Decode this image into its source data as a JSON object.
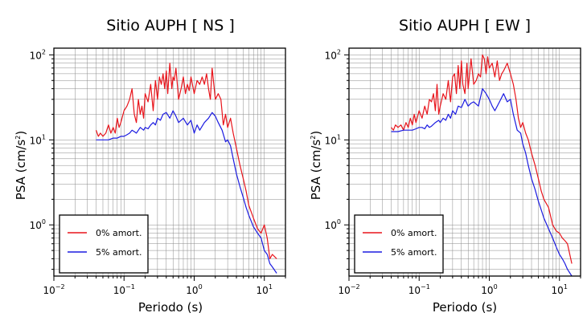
{
  "chart_data": [
    {
      "type": "line",
      "title": "Sitio AUPH [ NS ]",
      "xlabel": "Periodo (s)",
      "ylabel_main": "PSA (cm/s",
      "ylabel_sup": "2",
      "ylabel_close": ")",
      "xscale": "log",
      "yscale": "log",
      "xlim": [
        0.01,
        20
      ],
      "ylim": [
        0.25,
        120
      ],
      "grid": true,
      "legend_position": "bottom-left",
      "x_ticks": [
        {
          "base": "10",
          "exp": "−2"
        },
        {
          "base": "10",
          "exp": "−1"
        },
        {
          "base": "10",
          "exp": "0"
        },
        {
          "base": "10",
          "exp": "1"
        }
      ],
      "y_ticks": [
        {
          "base": "10",
          "exp": "0"
        },
        {
          "base": "10",
          "exp": "1"
        },
        {
          "base": "10",
          "exp": "2"
        }
      ],
      "series": [
        {
          "name": "0% amort.",
          "color": "#e8141b",
          "x": [
            0.04,
            0.043,
            0.046,
            0.05,
            0.055,
            0.06,
            0.065,
            0.07,
            0.075,
            0.08,
            0.085,
            0.09,
            0.1,
            0.11,
            0.12,
            0.13,
            0.14,
            0.15,
            0.16,
            0.17,
            0.18,
            0.19,
            0.2,
            0.22,
            0.24,
            0.26,
            0.28,
            0.3,
            0.32,
            0.34,
            0.36,
            0.38,
            0.4,
            0.42,
            0.45,
            0.48,
            0.5,
            0.52,
            0.55,
            0.6,
            0.65,
            0.7,
            0.75,
            0.8,
            0.85,
            0.9,
            1.0,
            1.1,
            1.2,
            1.3,
            1.4,
            1.5,
            1.6,
            1.7,
            1.8,
            2.0,
            2.2,
            2.4,
            2.6,
            2.8,
            3.0,
            3.3,
            3.6,
            4.0,
            4.5,
            5.0,
            5.5,
            6.0,
            7.0,
            8.0,
            9.0,
            10.0,
            11.0,
            12.0,
            13.0,
            15.0
          ],
          "y": [
            13,
            11,
            12,
            11,
            12,
            15,
            12,
            14,
            12,
            18,
            14,
            16,
            22,
            25,
            30,
            40,
            20,
            16,
            30,
            20,
            25,
            18,
            35,
            28,
            45,
            22,
            50,
            30,
            55,
            45,
            60,
            40,
            65,
            35,
            80,
            40,
            55,
            50,
            70,
            30,
            40,
            55,
            35,
            45,
            38,
            55,
            35,
            50,
            45,
            55,
            45,
            60,
            40,
            30,
            70,
            30,
            35,
            30,
            15,
            20,
            14,
            18,
            12,
            8,
            5,
            3.5,
            2.5,
            1.7,
            1.2,
            0.9,
            0.8,
            1.0,
            0.7,
            0.4,
            0.45,
            0.4
          ]
        },
        {
          "name": "5% amort.",
          "color": "#1b1be0",
          "x": [
            0.04,
            0.05,
            0.06,
            0.07,
            0.08,
            0.09,
            0.1,
            0.11,
            0.12,
            0.13,
            0.14,
            0.15,
            0.17,
            0.19,
            0.2,
            0.22,
            0.24,
            0.26,
            0.28,
            0.3,
            0.33,
            0.36,
            0.4,
            0.45,
            0.5,
            0.55,
            0.6,
            0.7,
            0.8,
            0.9,
            1.0,
            1.1,
            1.2,
            1.4,
            1.6,
            1.8,
            2.0,
            2.2,
            2.5,
            2.8,
            3.0,
            3.3,
            3.6,
            4.0,
            4.5,
            5.0,
            5.5,
            6.0,
            7.0,
            8.0,
            9.0,
            10.0,
            11.0,
            12.0,
            13.0,
            15.0
          ],
          "y": [
            10,
            10,
            10,
            10.5,
            10.5,
            11,
            11,
            11.5,
            12,
            13,
            12.5,
            12,
            14,
            13,
            14,
            13.5,
            15,
            16,
            15,
            18,
            17,
            20,
            21,
            18,
            22,
            19,
            16,
            18,
            15,
            17,
            12,
            15,
            13,
            16,
            18,
            21,
            19,
            16,
            13,
            9.5,
            10,
            8.5,
            6,
            4,
            2.8,
            2.1,
            1.6,
            1.3,
            0.95,
            0.8,
            0.7,
            0.5,
            0.45,
            0.35,
            0.32,
            0.27
          ]
        }
      ]
    },
    {
      "type": "line",
      "title": "Sitio AUPH [ EW ]",
      "xlabel": "Periodo (s)",
      "ylabel_main": "PSA (cm/s",
      "ylabel_sup": "2",
      "ylabel_close": ")",
      "xscale": "log",
      "yscale": "log",
      "xlim": [
        0.01,
        20
      ],
      "ylim": [
        0.25,
        120
      ],
      "grid": true,
      "legend_position": "bottom-left",
      "x_ticks": [
        {
          "base": "10",
          "exp": "−2"
        },
        {
          "base": "10",
          "exp": "−1"
        },
        {
          "base": "10",
          "exp": "0"
        },
        {
          "base": "10",
          "exp": "1"
        }
      ],
      "y_ticks": [
        {
          "base": "10",
          "exp": "0"
        },
        {
          "base": "10",
          "exp": "1"
        },
        {
          "base": "10",
          "exp": "2"
        }
      ],
      "series": [
        {
          "name": "0% amort.",
          "color": "#e8141b",
          "x": [
            0.04,
            0.043,
            0.046,
            0.05,
            0.055,
            0.06,
            0.065,
            0.07,
            0.075,
            0.08,
            0.085,
            0.09,
            0.1,
            0.11,
            0.12,
            0.13,
            0.14,
            0.15,
            0.16,
            0.17,
            0.18,
            0.19,
            0.2,
            0.22,
            0.24,
            0.26,
            0.28,
            0.3,
            0.32,
            0.34,
            0.36,
            0.38,
            0.4,
            0.42,
            0.45,
            0.48,
            0.5,
            0.55,
            0.6,
            0.65,
            0.7,
            0.75,
            0.8,
            0.85,
            0.9,
            0.95,
            1.0,
            1.1,
            1.2,
            1.3,
            1.4,
            1.5,
            1.6,
            1.8,
            2.0,
            2.2,
            2.4,
            2.6,
            2.8,
            3.0,
            3.3,
            3.6,
            4.0,
            4.5,
            5.0,
            5.5,
            6.0,
            7.0,
            8.0,
            9.0,
            10.0,
            11.0,
            12.0,
            13.0,
            15.0
          ],
          "y": [
            14,
            13,
            15,
            14,
            15,
            13,
            16,
            14,
            18,
            15,
            20,
            16,
            22,
            18,
            25,
            20,
            30,
            28,
            35,
            22,
            45,
            20,
            25,
            35,
            30,
            50,
            28,
            55,
            60,
            35,
            75,
            40,
            85,
            45,
            35,
            80,
            40,
            90,
            45,
            50,
            60,
            55,
            100,
            90,
            60,
            95,
            70,
            80,
            55,
            85,
            50,
            60,
            65,
            80,
            60,
            45,
            30,
            18,
            14,
            16,
            12,
            10,
            7,
            5,
            3.5,
            2.5,
            2.0,
            1.6,
            1.0,
            0.85,
            0.8,
            0.7,
            0.65,
            0.6,
            0.35
          ]
        },
        {
          "name": "5% amort.",
          "color": "#1b1be0",
          "x": [
            0.04,
            0.05,
            0.06,
            0.07,
            0.08,
            0.09,
            0.1,
            0.11,
            0.12,
            0.13,
            0.14,
            0.15,
            0.17,
            0.19,
            0.2,
            0.22,
            0.24,
            0.26,
            0.28,
            0.3,
            0.33,
            0.36,
            0.4,
            0.45,
            0.5,
            0.55,
            0.6,
            0.7,
            0.8,
            0.9,
            1.0,
            1.1,
            1.2,
            1.4,
            1.6,
            1.8,
            2.0,
            2.2,
            2.5,
            2.8,
            3.0,
            3.3,
            3.6,
            4.0,
            4.5,
            5.0,
            5.5,
            6.0,
            7.0,
            8.0,
            9.0,
            10.0,
            11.0,
            12.0,
            13.0,
            15.0
          ],
          "y": [
            12.5,
            12.5,
            13,
            13,
            13,
            13.5,
            14,
            14,
            13.5,
            15,
            14,
            14.5,
            16,
            17,
            16,
            18,
            17,
            20,
            18,
            22,
            20,
            25,
            24,
            30,
            25,
            27,
            28,
            25,
            40,
            35,
            30,
            25,
            22,
            28,
            35,
            28,
            30,
            20,
            13,
            12,
            9,
            7,
            5,
            3.5,
            2.6,
            1.9,
            1.5,
            1.2,
            0.9,
            0.7,
            0.55,
            0.45,
            0.4,
            0.35,
            0.3,
            0.25
          ]
        }
      ]
    }
  ]
}
